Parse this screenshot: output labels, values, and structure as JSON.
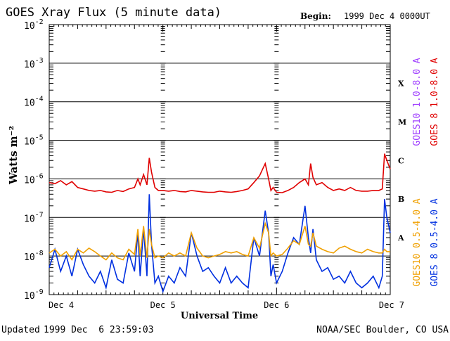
{
  "header": {
    "title": "GOES Xray Flux (5 minute data)",
    "begin_label": "Begin:",
    "begin_value": "1999 Dec 4 0000UT"
  },
  "footer": {
    "updated_label": "Updated",
    "updated_value": "1999 Dec  6 23:59:03",
    "credit": "NOAA/SEC Boulder, CO USA"
  },
  "colors": {
    "goes10_long": "#a040ff",
    "goes8_long": "#e00000",
    "goes10_short": "#f0a000",
    "goes8_short": "#0030e0"
  },
  "chart_data": {
    "type": "line",
    "title": "GOES Xray Flux (5 minute data)",
    "xlabel": "Universal Time",
    "ylabel": "Watts m⁻²",
    "yscale": "log",
    "ylim": [
      1e-09,
      0.01
    ],
    "xlim": [
      0,
      3
    ],
    "xticks": [
      "Dec 4",
      "Dec 5",
      "Dec 6",
      "Dec 7"
    ],
    "ytick_labels": [
      {
        "base": "10",
        "exp": "-9",
        "value": 1e-09
      },
      {
        "base": "10",
        "exp": "-8",
        "value": 1e-08
      },
      {
        "base": "10",
        "exp": "-7",
        "value": 1e-07
      },
      {
        "base": "10",
        "exp": "-6",
        "value": 1e-06
      },
      {
        "base": "10",
        "exp": "-5",
        "value": 1e-05
      },
      {
        "base": "10",
        "exp": "-4",
        "value": 0.0001
      },
      {
        "base": "10",
        "exp": "-3",
        "value": 0.001
      },
      {
        "base": "10",
        "exp": "-2",
        "value": 0.01
      }
    ],
    "flare_classes": [
      {
        "label": "A",
        "value": 3e-08
      },
      {
        "label": "B",
        "value": 3e-07
      },
      {
        "label": "C",
        "value": 3e-06
      },
      {
        "label": "M",
        "value": 3e-05
      },
      {
        "label": "X",
        "value": 0.0003
      }
    ],
    "legend_right": [
      {
        "text": "GOES10 1.0-8.0 A",
        "color": "#a040ff",
        "group": "long"
      },
      {
        "text": "GOES 8 1.0-8.0 A",
        "color": "#e00000",
        "group": "long"
      },
      {
        "text": "GOES10 0.5-4.0 A",
        "color": "#f0a000",
        "group": "short"
      },
      {
        "text": "GOES 8 0.5-4.0 A",
        "color": "#0030e0",
        "group": "short"
      }
    ],
    "series": [
      {
        "name": "GOES 8 1.0-8.0 A",
        "color": "#e00000",
        "x": [
          0,
          0.05,
          0.1,
          0.15,
          0.2,
          0.25,
          0.3,
          0.35,
          0.4,
          0.45,
          0.5,
          0.55,
          0.6,
          0.65,
          0.7,
          0.75,
          0.78,
          0.8,
          0.83,
          0.86,
          0.88,
          0.9,
          0.93,
          0.96,
          1.0,
          1.05,
          1.1,
          1.15,
          1.2,
          1.25,
          1.3,
          1.35,
          1.4,
          1.45,
          1.5,
          1.55,
          1.6,
          1.65,
          1.7,
          1.75,
          1.8,
          1.85,
          1.9,
          1.93,
          1.95,
          1.97,
          2.0,
          2.05,
          2.1,
          2.15,
          2.2,
          2.25,
          2.28,
          2.3,
          2.32,
          2.35,
          2.4,
          2.45,
          2.5,
          2.55,
          2.6,
          2.65,
          2.7,
          2.75,
          2.8,
          2.85,
          2.9,
          2.93,
          2.95,
          2.97,
          3.0
        ],
        "values": [
          8e-07,
          7.5e-07,
          9e-07,
          7e-07,
          8.5e-07,
          6e-07,
          5.5e-07,
          5e-07,
          4.8e-07,
          5e-07,
          4.6e-07,
          4.5e-07,
          5e-07,
          4.7e-07,
          5.5e-07,
          6e-07,
          1e-06,
          7e-07,
          1.3e-06,
          7e-07,
          3.5e-06,
          1.5e-06,
          6e-07,
          5e-07,
          5e-07,
          4.8e-07,
          5e-07,
          4.7e-07,
          4.6e-07,
          5e-07,
          4.8e-07,
          4.6e-07,
          4.5e-07,
          4.5e-07,
          4.8e-07,
          4.6e-07,
          4.5e-07,
          4.7e-07,
          5e-07,
          5.5e-07,
          8e-07,
          1.2e-06,
          2.5e-06,
          1e-06,
          5e-07,
          6e-07,
          4.5e-07,
          4.4e-07,
          5e-07,
          6e-07,
          8e-07,
          1e-06,
          7e-07,
          2.5e-06,
          1.1e-06,
          7e-07,
          8e-07,
          6e-07,
          5e-07,
          5.5e-07,
          5e-07,
          6e-07,
          5e-07,
          4.8e-07,
          4.8e-07,
          5e-07,
          5e-07,
          5.5e-07,
          4.5e-06,
          3e-06,
          1.8e-06
        ]
      },
      {
        "name": "GOES 8 0.5-4.0 A",
        "color": "#0030e0",
        "x": [
          0,
          0.05,
          0.1,
          0.15,
          0.2,
          0.25,
          0.3,
          0.35,
          0.4,
          0.45,
          0.5,
          0.55,
          0.6,
          0.65,
          0.7,
          0.75,
          0.78,
          0.8,
          0.83,
          0.86,
          0.88,
          0.9,
          0.93,
          0.96,
          1.0,
          1.05,
          1.1,
          1.15,
          1.2,
          1.25,
          1.3,
          1.35,
          1.4,
          1.45,
          1.5,
          1.55,
          1.6,
          1.65,
          1.7,
          1.75,
          1.8,
          1.85,
          1.9,
          1.93,
          1.95,
          1.97,
          2.0,
          2.05,
          2.1,
          2.15,
          2.2,
          2.25,
          2.28,
          2.3,
          2.32,
          2.35,
          2.4,
          2.45,
          2.5,
          2.55,
          2.6,
          2.65,
          2.7,
          2.75,
          2.8,
          2.85,
          2.9,
          2.93,
          2.95,
          2.97,
          3.0
        ],
        "values": [
          5e-09,
          1.5e-08,
          4e-09,
          1e-08,
          3e-09,
          1.5e-08,
          6e-09,
          3e-09,
          2e-09,
          4e-09,
          1.5e-09,
          8e-09,
          2.5e-09,
          2e-09,
          1.2e-08,
          4e-09,
          4e-08,
          3e-09,
          5e-08,
          3e-09,
          4e-07,
          2e-08,
          2e-09,
          3e-09,
          1.2e-09,
          3e-09,
          2e-09,
          5e-09,
          3e-09,
          4e-08,
          1e-08,
          4e-09,
          5e-09,
          3e-09,
          2e-09,
          5e-09,
          2e-09,
          3e-09,
          2e-09,
          1.5e-09,
          3e-08,
          1e-08,
          1.5e-07,
          4e-08,
          3e-09,
          6e-09,
          2e-09,
          4e-09,
          1.2e-08,
          3e-08,
          2e-08,
          2e-07,
          3e-08,
          1.2e-08,
          5e-08,
          8e-09,
          4e-09,
          5e-09,
          2.5e-09,
          3e-09,
          2e-09,
          4e-09,
          2e-09,
          1.5e-09,
          2e-09,
          3e-09,
          1.5e-09,
          3e-09,
          3e-07,
          1e-07,
          4e-08
        ]
      },
      {
        "name": "GOES10 0.5-4.0 A",
        "color": "#f0a000",
        "x": [
          0,
          0.05,
          0.1,
          0.15,
          0.2,
          0.25,
          0.3,
          0.35,
          0.4,
          0.45,
          0.5,
          0.55,
          0.6,
          0.65,
          0.7,
          0.75,
          0.78,
          0.8,
          0.83,
          0.86,
          0.88,
          0.9,
          0.93,
          0.96,
          1.0,
          1.05,
          1.1,
          1.15,
          1.2,
          1.25,
          1.3,
          1.35,
          1.4,
          1.45,
          1.5,
          1.55,
          1.6,
          1.65,
          1.7,
          1.75,
          1.8,
          1.85,
          1.9,
          1.93,
          1.95,
          1.97,
          2.0,
          2.05,
          2.1,
          2.15,
          2.2,
          2.25,
          2.28,
          2.3,
          2.32,
          2.35,
          2.4,
          2.45,
          2.5,
          2.55,
          2.6,
          2.65,
          2.7,
          2.75,
          2.8,
          2.85,
          2.9,
          2.93,
          2.95,
          2.97,
          3.0
        ],
        "values": [
          1.2e-08,
          1.5e-08,
          1e-08,
          1.3e-08,
          8e-09,
          1.5e-08,
          1.2e-08,
          1.6e-08,
          1.3e-08,
          1e-08,
          8e-09,
          1.2e-08,
          9e-09,
          8e-09,
          1.5e-08,
          1.1e-08,
          5e-08,
          1e-08,
          6e-08,
          9e-09,
          5e-08,
          2e-08,
          9e-09,
          1e-08,
          9e-09,
          1.2e-08,
          1e-08,
          1.2e-08,
          1e-08,
          4e-08,
          1.6e-08,
          1e-08,
          9e-09,
          1e-08,
          1.1e-08,
          1.3e-08,
          1.2e-08,
          1.3e-08,
          1.1e-08,
          1e-08,
          3e-08,
          1.6e-08,
          7e-08,
          4e-08,
          1e-08,
          1.2e-08,
          1e-08,
          1.1e-08,
          1.6e-08,
          2.5e-08,
          2e-08,
          6e-08,
          2e-08,
          1.8e-08,
          4e-08,
          1.8e-08,
          1.5e-08,
          1.3e-08,
          1.2e-08,
          1.6e-08,
          1.8e-08,
          1.5e-08,
          1.3e-08,
          1.2e-08,
          1.5e-08,
          1.3e-08,
          1.2e-08,
          1.2e-08,
          1.5e-08,
          1.3e-08,
          1.3e-08
        ]
      }
    ]
  }
}
